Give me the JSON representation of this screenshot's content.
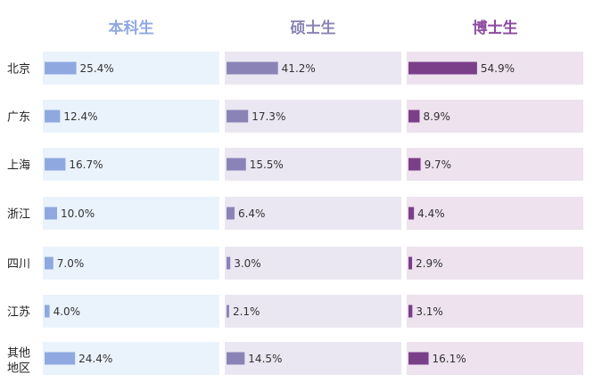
{
  "chart_data": {
    "type": "bar",
    "orientation": "horizontal",
    "layout": "small-multiples",
    "value_suffix": "%",
    "categories": [
      "北京",
      "广东",
      "上海",
      "浙江",
      "四川",
      "江苏",
      "其他地区"
    ],
    "xlim": [
      0,
      60
    ],
    "grid": false,
    "series": [
      {
        "name": "本科生",
        "color": "#8fa8e0",
        "panel_bg": "#eaf3fc",
        "header_color": "#8fa8e0",
        "values": [
          25.4,
          12.4,
          16.7,
          10.0,
          7.0,
          4.0,
          24.4
        ]
      },
      {
        "name": "硕士生",
        "color": "#8a84b6",
        "panel_bg": "#ebe7f2",
        "header_color": "#8a84b6",
        "values": [
          41.2,
          17.3,
          15.5,
          6.4,
          3.0,
          2.1,
          14.5
        ]
      },
      {
        "name": "博士生",
        "color": "#7b3f8a",
        "panel_bg": "#ede2ee",
        "header_color": "#8c4aa0",
        "values": [
          54.9,
          8.9,
          9.7,
          4.4,
          2.9,
          3.1,
          16.1
        ]
      }
    ]
  }
}
